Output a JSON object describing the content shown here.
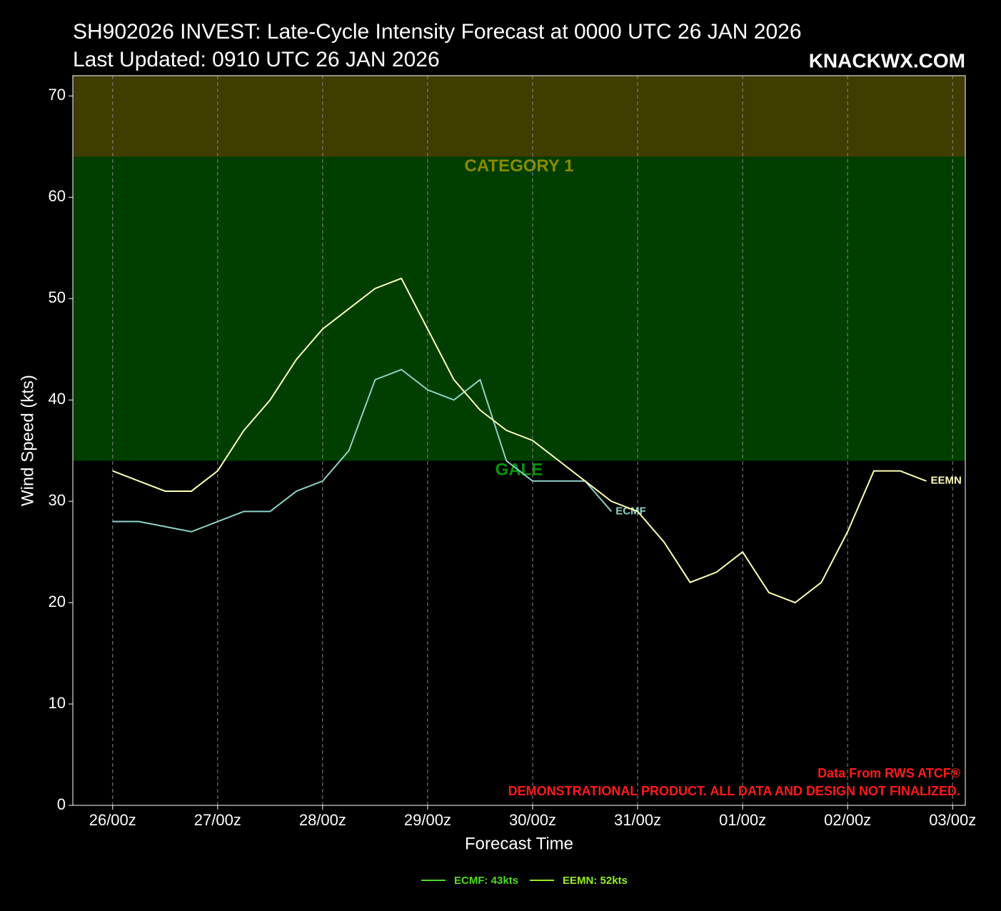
{
  "chart_data": {
    "type": "line",
    "title": "SH902026 INVEST: Late-Cycle Intensity Forecast at 0000 UTC 26 JAN 2026",
    "subtitle": "Last Updated: 0910 UTC 26 JAN 2026",
    "watermark": "KNACKWX.COM",
    "x_label": "Forecast Time",
    "y_label": "Wind Speed (kts)",
    "notes": [
      "Data From RWS ATCF®",
      "DEMONSTRATIONAL PRODUCT. ALL DATA AND DESIGN NOT FINALIZED."
    ],
    "xlim": [
      -9.1,
      194.9
    ],
    "xticks": [
      {
        "value": 0,
        "label": "26/00z"
      },
      {
        "value": 24,
        "label": "27/00z"
      },
      {
        "value": 48,
        "label": "28/00z"
      },
      {
        "value": 72,
        "label": "29/00z"
      },
      {
        "value": 96,
        "label": "30/00z"
      },
      {
        "value": 120,
        "label": "31/00z"
      },
      {
        "value": 144,
        "label": "01/00z"
      },
      {
        "value": 168,
        "label": "02/00z"
      },
      {
        "value": 192,
        "label": "03/00z"
      }
    ],
    "ylim": [
      0,
      72
    ],
    "yticks": [
      0,
      10,
      20,
      30,
      40,
      50,
      60,
      70
    ],
    "grid": true,
    "bands": [
      {
        "label": "GALE",
        "from": 34,
        "to": 64,
        "color": "#003f00",
        "label_color": "#009900"
      },
      {
        "label": "CATEGORY 1",
        "from": 64,
        "to": 72,
        "color": "#3f3d00",
        "label_color": "#8a8a00"
      }
    ],
    "series": [
      {
        "name": "ECMF",
        "color": "#8dd3c7",
        "x": [
          0,
          6,
          12,
          18,
          24,
          30,
          36,
          42,
          48,
          54,
          60,
          66,
          72,
          78,
          84,
          90,
          96,
          102,
          108,
          114
        ],
        "values": [
          28,
          28,
          27.5,
          27,
          28,
          29,
          29,
          31,
          32,
          35,
          42,
          43,
          41,
          40,
          42,
          34,
          32,
          32,
          32,
          29
        ]
      },
      {
        "name": "EEMN",
        "color": "#ffffb3",
        "x": [
          0,
          6,
          12,
          18,
          24,
          30,
          36,
          42,
          48,
          54,
          60,
          66,
          72,
          78,
          84,
          90,
          96,
          102,
          108,
          114,
          120,
          126,
          132,
          138,
          144,
          150,
          156,
          162,
          168,
          174,
          180,
          186
        ],
        "values": [
          33,
          32,
          31,
          31,
          33,
          37,
          40,
          44,
          47,
          49,
          51,
          52,
          47,
          42,
          39,
          37,
          36,
          34,
          32,
          30,
          29,
          26,
          22,
          23,
          25,
          21,
          20,
          22,
          27,
          33,
          33,
          32
        ]
      }
    ],
    "legend": [
      {
        "label": "ECMF: 43kts",
        "color": "#4ddd22"
      },
      {
        "label": "EEMN: 52kts",
        "color": "#99ee22"
      }
    ]
  }
}
